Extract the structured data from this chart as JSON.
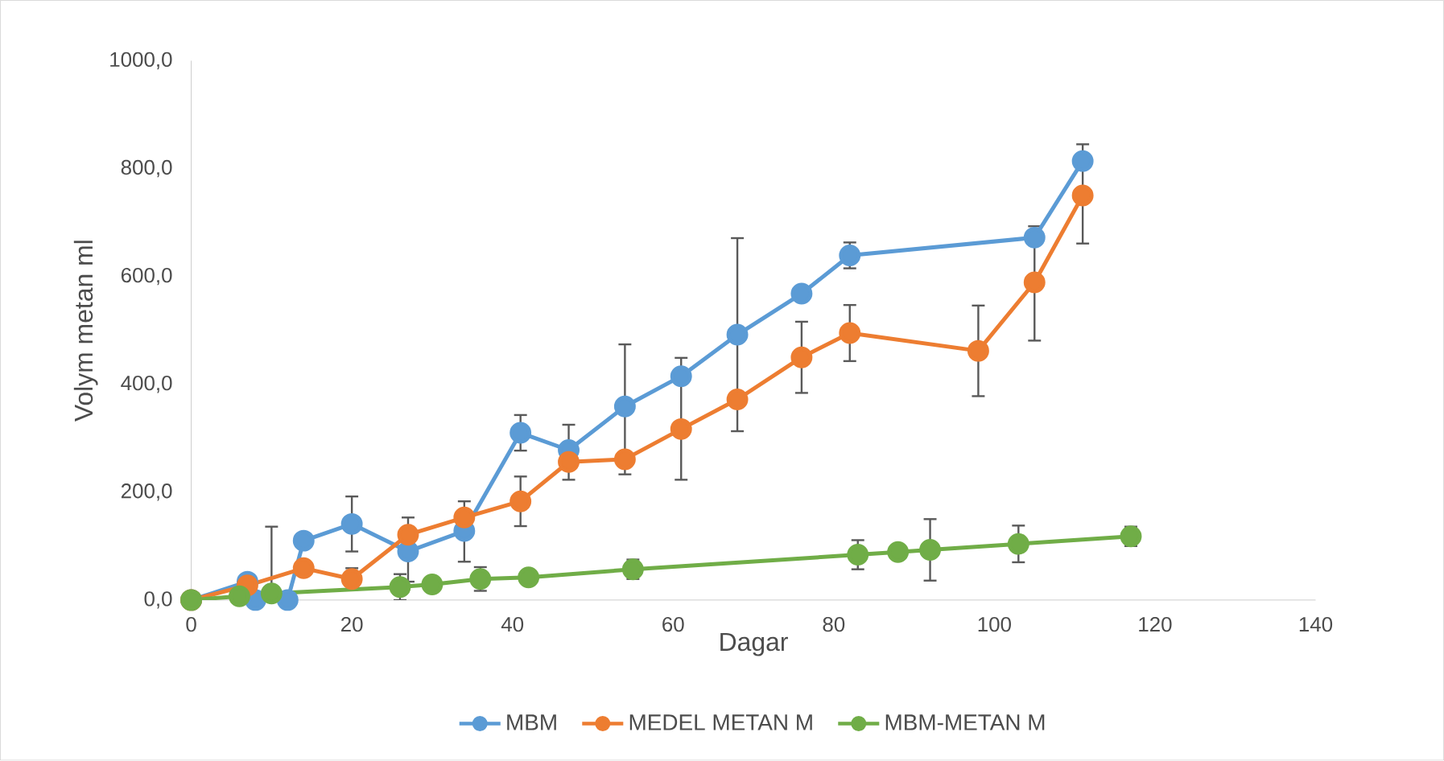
{
  "chart_data": {
    "type": "line",
    "xlabel": "Dagar",
    "ylabel": "Volym metan ml",
    "xlim": [
      0,
      140
    ],
    "xticks": [
      0,
      20,
      40,
      60,
      80,
      100,
      120,
      140
    ],
    "ylim": [
      0,
      1000
    ],
    "yticks": [
      {
        "value": 0,
        "label": "0,0"
      },
      {
        "value": 200,
        "label": "200,0"
      },
      {
        "value": 400,
        "label": "400,0"
      },
      {
        "value": 600,
        "label": "600,0"
      },
      {
        "value": 800,
        "label": "800,0"
      },
      {
        "value": 1000,
        "label": "1000,0"
      }
    ],
    "legend": "bottom",
    "marker": "circle",
    "line_style": "solid",
    "series": [
      {
        "name": "MBM",
        "color": "#5b9bd5",
        "x": [
          0,
          7,
          8,
          12,
          14,
          20,
          27,
          34,
          41,
          47,
          54,
          61,
          68,
          76,
          82,
          105,
          111
        ],
        "values": [
          0,
          34,
          0,
          0,
          110,
          141,
          90,
          128,
          310,
          278,
          359,
          415,
          492,
          568,
          639,
          672,
          814
        ],
        "errors": [
          null,
          null,
          null,
          null,
          null,
          51,
          [
            34,
            153
          ],
          [
            71,
            183
          ],
          33,
          [
            223,
            325
          ],
          [
            233,
            474
          ],
          [
            223,
            449
          ],
          [
            313,
            671
          ],
          null,
          24,
          null,
          null
        ]
      },
      {
        "name": "MEDEL METAN M",
        "color": "#ed7d31",
        "x": [
          0,
          7,
          14,
          20,
          27,
          34,
          41,
          47,
          54,
          61,
          68,
          76,
          82,
          98,
          105,
          111
        ],
        "values": [
          0,
          27,
          59,
          39,
          121,
          153,
          183,
          256,
          261,
          317,
          372,
          450,
          495,
          462,
          589,
          750
        ],
        "errors": [
          null,
          null,
          null,
          20,
          null,
          null,
          46,
          null,
          null,
          null,
          null,
          66,
          52,
          84,
          [
            481,
            693
          ],
          [
            661,
            845
          ]
        ]
      },
      {
        "name": "MBM-METAN M",
        "color": "#70ad47",
        "x": [
          0,
          6,
          10,
          26,
          30,
          36,
          42,
          55,
          83,
          88,
          92,
          103,
          117
        ],
        "values": [
          0,
          7,
          12,
          24,
          29,
          39,
          42,
          57,
          84,
          89,
          93,
          104,
          118
        ],
        "errors": [
          null,
          null,
          [
            0,
            136
          ],
          24,
          null,
          22,
          null,
          18,
          27,
          null,
          57,
          34,
          18
        ]
      }
    ]
  }
}
